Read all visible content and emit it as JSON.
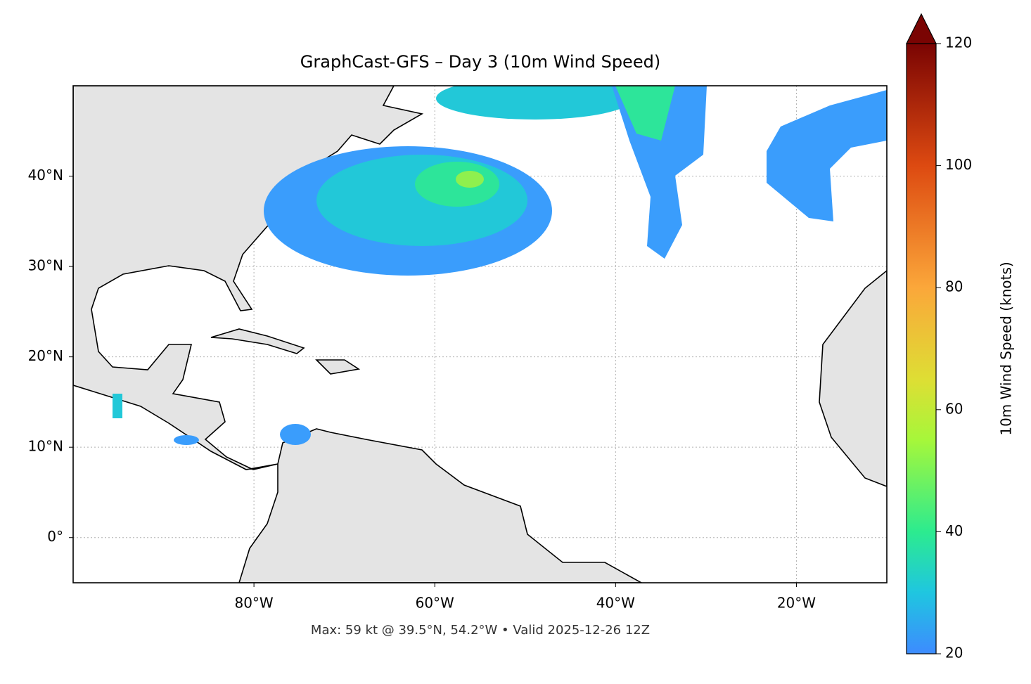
{
  "chart_data": {
    "type": "map",
    "title": "GraphCast-GFS – Day 3 (10m Wind Speed)",
    "annotation": "Max: 59 kt @ 39.5°N, 54.2°W • Valid 2025-12-26 12Z",
    "xlim": [
      -100,
      -10
    ],
    "ylim": [
      -5,
      50
    ],
    "xticks": [
      {
        "value": -80,
        "label": "80°W"
      },
      {
        "value": -60,
        "label": "60°W"
      },
      {
        "value": -40,
        "label": "40°W"
      },
      {
        "value": -20,
        "label": "20°W"
      }
    ],
    "yticks": [
      {
        "value": 0,
        "label": "0°"
      },
      {
        "value": 10,
        "label": "10°N"
      },
      {
        "value": 20,
        "label": "20°N"
      },
      {
        "value": 30,
        "label": "30°N"
      },
      {
        "value": 40,
        "label": "40°N"
      }
    ],
    "grid": true,
    "colorbar": {
      "label": "10m Wind Speed (knots)",
      "lim": [
        20,
        120
      ],
      "ticks": [
        20,
        40,
        60,
        80,
        100,
        120
      ]
    }
  }
}
